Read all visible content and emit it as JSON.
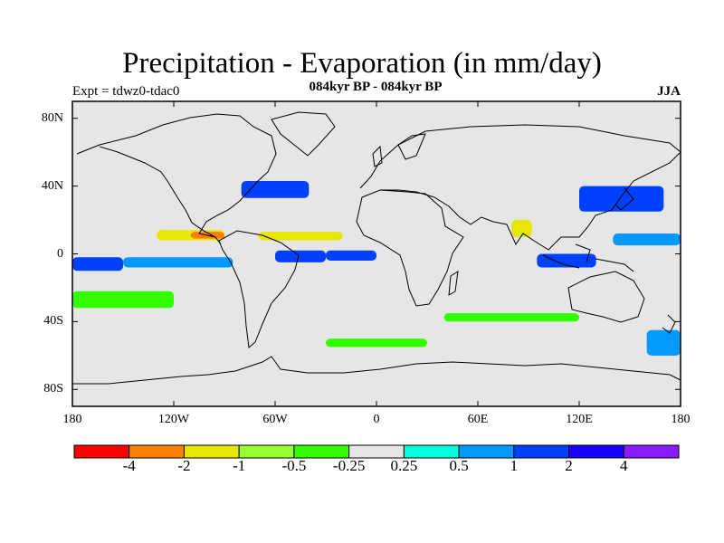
{
  "title": "Precipitation - Evaporation (in mm/day)",
  "subtitle": "084kyr BP - 084kyr BP",
  "expt_label": "Expt = tdwz0-tdac0",
  "season": "JJA",
  "map": {
    "projection": "cylindrical-equidistant",
    "lon_range": [
      -180,
      180
    ],
    "lat_range": [
      -90,
      90
    ],
    "background_color": "#e6e6e6",
    "coastline_color": "#000000",
    "lat_tick_labels": [
      "80N",
      "40N",
      "0",
      "40S",
      "80S"
    ],
    "lon_tick_labels": [
      "180",
      "120W",
      "60W",
      "0",
      "60E",
      "120E",
      "180"
    ]
  },
  "colorbar": {
    "colors": [
      "#ff0000",
      "#ff8000",
      "#e6e600",
      "#99ff33",
      "#33ff00",
      "#e6e6e6",
      "#00ffd9",
      "#0099ff",
      "#0040ff",
      "#1a00ff",
      "#8a1aff"
    ],
    "labels": [
      "-4",
      "-2",
      "-1",
      "-0.5",
      "-0.25",
      "0.25",
      "0.5",
      "1",
      "2",
      "4"
    ]
  },
  "chart_data": {
    "type": "heatmap",
    "title": "Precipitation - Evaporation (in mm/day)",
    "subtitle": "084kyr BP - 084kyr BP",
    "levels": [
      -4,
      -2,
      -1,
      -0.5,
      -0.25,
      0.25,
      0.5,
      1,
      2,
      4
    ],
    "regions": [
      {
        "lon": [
          -180,
          -150
        ],
        "lat": [
          -10,
          -2
        ],
        "value": 1.5
      },
      {
        "lon": [
          -150,
          -85
        ],
        "lat": [
          -8,
          -2
        ],
        "value": 0.7
      },
      {
        "lon": [
          -130,
          -90
        ],
        "lat": [
          8,
          14
        ],
        "value": -1.2
      },
      {
        "lon": [
          -110,
          -90
        ],
        "lat": [
          9,
          13
        ],
        "value": -2.5
      },
      {
        "lon": [
          -70,
          -20
        ],
        "lat": [
          8,
          13
        ],
        "value": -1.5
      },
      {
        "lon": [
          -60,
          -30
        ],
        "lat": [
          -5,
          2
        ],
        "value": 1.5
      },
      {
        "lon": [
          -30,
          0
        ],
        "lat": [
          -4,
          2
        ],
        "value": 1.0
      },
      {
        "lon": [
          -80,
          -40
        ],
        "lat": [
          33,
          43
        ],
        "value": 1.5
      },
      {
        "lon": [
          80,
          92
        ],
        "lat": [
          10,
          20
        ],
        "value": -2.0
      },
      {
        "lon": [
          95,
          130
        ],
        "lat": [
          -8,
          0
        ],
        "value": 1.5
      },
      {
        "lon": [
          120,
          170
        ],
        "lat": [
          25,
          40
        ],
        "value": 1.8
      },
      {
        "lon": [
          140,
          180
        ],
        "lat": [
          5,
          12
        ],
        "value": 0.8
      },
      {
        "lon": [
          -180,
          -120
        ],
        "lat": [
          -32,
          -22
        ],
        "value": -0.4
      },
      {
        "lon": [
          -30,
          30
        ],
        "lat": [
          -55,
          -50
        ],
        "value": -0.4
      },
      {
        "lon": [
          40,
          120
        ],
        "lat": [
          -40,
          -35
        ],
        "value": -0.4
      },
      {
        "lon": [
          160,
          180
        ],
        "lat": [
          -60,
          -45
        ],
        "value": 0.6
      }
    ]
  }
}
